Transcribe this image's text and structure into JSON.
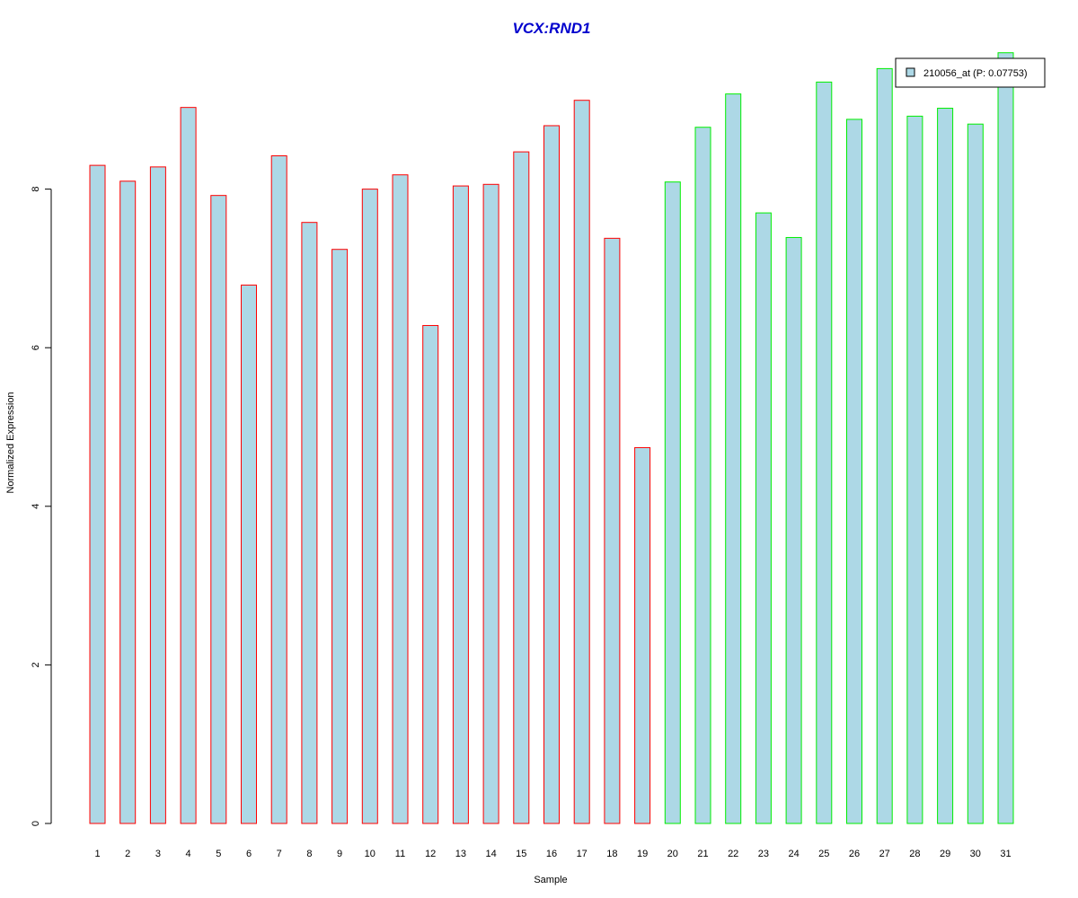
{
  "chart_data": {
    "type": "bar",
    "title": "VCX:RND1",
    "xlabel": "Sample",
    "ylabel": "Normalized Expression",
    "categories": [
      "1",
      "2",
      "3",
      "4",
      "5",
      "6",
      "7",
      "8",
      "9",
      "10",
      "11",
      "12",
      "13",
      "14",
      "15",
      "16",
      "17",
      "18",
      "19",
      "20",
      "21",
      "22",
      "23",
      "24",
      "25",
      "26",
      "27",
      "28",
      "29",
      "30",
      "31"
    ],
    "series": [
      {
        "name": "210056_at (P: 0.07753)",
        "values": [
          8.3,
          8.1,
          8.28,
          9.03,
          7.92,
          6.79,
          8.42,
          7.58,
          7.24,
          8.0,
          8.18,
          6.28,
          8.04,
          8.06,
          8.47,
          8.8,
          9.12,
          7.38,
          4.74,
          8.09,
          8.78,
          9.2,
          7.7,
          7.39,
          9.35,
          8.88,
          9.52,
          8.92,
          9.02,
          8.82,
          9.72
        ]
      }
    ],
    "groups": [
      {
        "from": 1,
        "to": 19,
        "border_color": "#ff0000"
      },
      {
        "from": 20,
        "to": 31,
        "border_color": "#00ee00"
      }
    ],
    "fill_color": "#add8e6",
    "title_color": "#0000cd",
    "yticks": [
      0,
      2,
      4,
      6,
      8
    ],
    "ylim": [
      0,
      9.72
    ],
    "grid": false,
    "legend_position": "top-right"
  }
}
